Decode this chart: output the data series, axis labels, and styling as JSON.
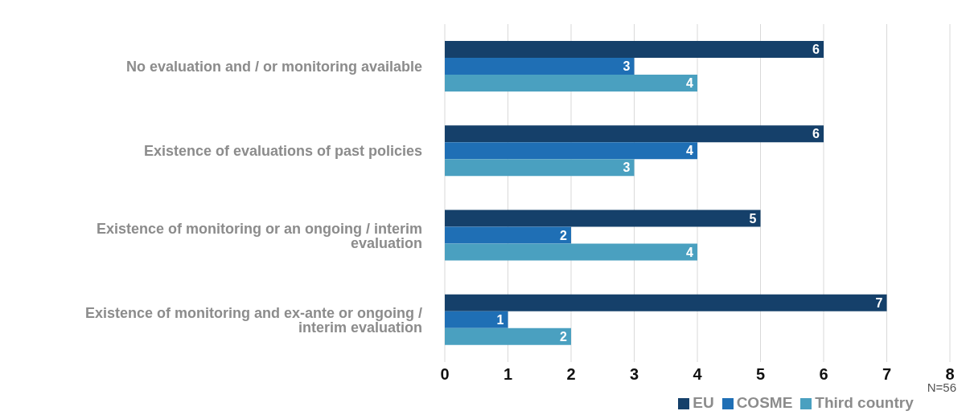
{
  "chart_data": {
    "type": "bar",
    "orientation": "horizontal",
    "categories": [
      "No evaluation and / or monitoring available",
      "Existence of evaluations of past policies",
      "Existence of monitoring or an ongoing / interim evaluation",
      "Existence of monitoring and ex-ante or ongoing / interim evaluation"
    ],
    "series": [
      {
        "name": "EU",
        "color": "#15406a",
        "values": [
          6,
          6,
          5,
          7
        ]
      },
      {
        "name": "COSME",
        "color": "#1f6fb5",
        "values": [
          3,
          4,
          2,
          1
        ]
      },
      {
        "name": "Third country",
        "color": "#4aa0c0",
        "values": [
          4,
          3,
          4,
          2
        ]
      }
    ],
    "xlim": [
      0,
      8
    ],
    "xticks": [
      0,
      1,
      2,
      3,
      4,
      5,
      6,
      7,
      8
    ],
    "grid": "x",
    "legend": "bottom",
    "data_labels": true,
    "annotations": [
      "N=56"
    ]
  }
}
